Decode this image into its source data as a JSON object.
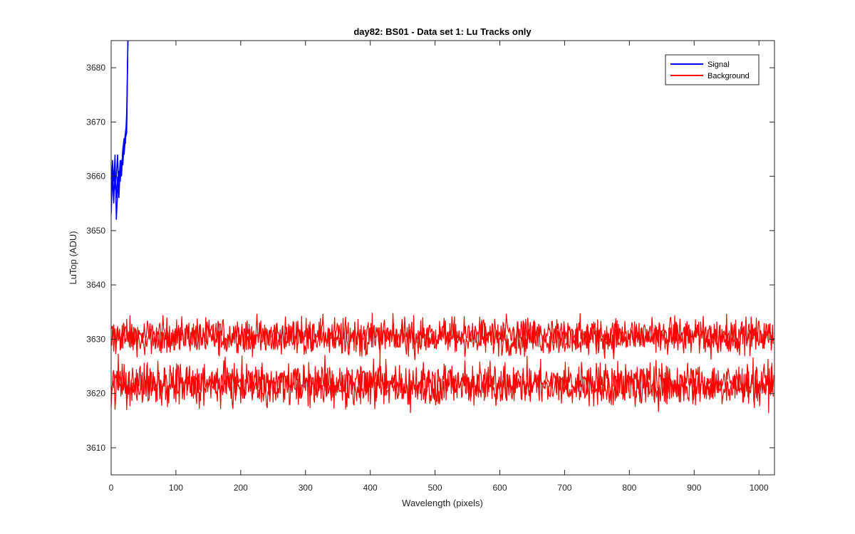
{
  "chart_data": {
    "type": "line",
    "title": "day82: BS01 - Data set 1: Lu Tracks only",
    "xlabel": "Wavelength (pixels)",
    "ylabel": "LuTop (ADU)",
    "xlim": [
      0,
      1024
    ],
    "ylim": [
      3605,
      3685
    ],
    "xticks": [
      0,
      100,
      200,
      300,
      400,
      500,
      600,
      700,
      800,
      900,
      1000
    ],
    "yticks": [
      3610,
      3620,
      3630,
      3640,
      3650,
      3660,
      3670,
      3680
    ],
    "grid": false,
    "legend_position": "top-right",
    "series": [
      {
        "name": "Signal",
        "color": "#0000ff",
        "traces": [
          {
            "x": [
              0,
              2,
              4,
              6,
              8,
              10,
              12,
              14,
              16,
              18,
              20,
              22,
              24,
              26
            ],
            "y": [
              3653,
              3660,
              3655,
              3662,
              3656,
              3660,
              3659,
              3663,
              3661,
              3665,
              3664,
              3667,
              3668,
              3686
            ]
          },
          {
            "x": [
              0,
              2,
              4,
              6,
              8,
              10,
              12,
              14,
              16,
              18,
              20,
              22,
              24,
              26
            ],
            "y": [
              3657,
              3663,
              3659,
              3664,
              3652,
              3657,
              3661,
              3659,
              3663,
              3662,
              3666,
              3668,
              3670,
              3686
            ]
          },
          {
            "x": [
              0,
              2,
              4,
              6,
              8,
              10,
              12,
              14,
              16,
              18,
              20,
              22,
              24,
              26
            ],
            "y": [
              3655,
              3661,
              3657,
              3658,
              3660,
              3664,
              3656,
              3662,
              3660,
              3665,
              3667,
              3666,
              3672,
              3686
            ]
          }
        ]
      },
      {
        "name": "Background",
        "color": "#ff0000",
        "traces": [
          {
            "mean": 3630.8,
            "amplitude": 1.6,
            "min": 3624,
            "max": 3635
          },
          {
            "mean": 3630.2,
            "amplitude": 1.6,
            "min": 3624,
            "max": 3635
          },
          {
            "mean": 3622.0,
            "amplitude": 1.9,
            "min": 3615,
            "max": 3628
          },
          {
            "mean": 3621.4,
            "amplitude": 1.9,
            "min": 3615,
            "max": 3628
          }
        ]
      }
    ]
  }
}
